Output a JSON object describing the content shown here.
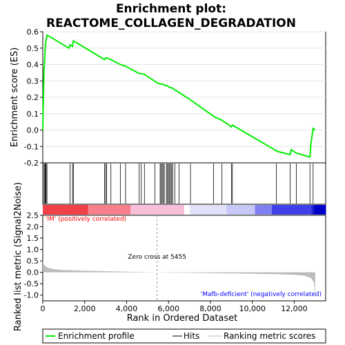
{
  "title_line1": "Enrichment plot:",
  "title_line2": "REACTOME_COLLAGEN_DEGRADATION",
  "colors": {
    "es_line": "#00ee00",
    "hits": "#000000",
    "metric": "#bbbbbb",
    "pos": "#ff0000",
    "neg": "#0000ff"
  },
  "chart_data": [
    {
      "type": "line",
      "name": "enrichment-score",
      "ylabel": "Enrichment score (ES)",
      "xlim": [
        0,
        13500
      ],
      "ylim": [
        -0.2,
        0.6
      ],
      "yticks": [
        "-0.2",
        "-0.1",
        "0.0",
        "0.1",
        "0.2",
        "0.3",
        "0.4",
        "0.5",
        "0.6"
      ],
      "ytick_values": [
        -0.2,
        -0.1,
        0.0,
        0.1,
        0.2,
        0.3,
        0.4,
        0.5,
        0.6
      ],
      "x": [
        0,
        30,
        60,
        100,
        130,
        160,
        200,
        1250,
        1300,
        1420,
        1460,
        2950,
        3000,
        3050,
        3250,
        3700,
        3950,
        4600,
        4700,
        4850,
        5500,
        5650,
        5700,
        5750,
        5800,
        5900,
        5950,
        6000,
        6050,
        6100,
        6200,
        6300,
        6500,
        7100,
        8200,
        8550,
        9000,
        9050,
        11200,
        11800,
        11850,
        12100,
        12750,
        12800,
        12900,
        13000
      ],
      "y": [
        0.0,
        0.2,
        0.36,
        0.45,
        0.52,
        0.55,
        0.58,
        0.5,
        0.52,
        0.51,
        0.545,
        0.43,
        0.44,
        0.44,
        0.43,
        0.4,
        0.39,
        0.345,
        0.345,
        0.34,
        0.285,
        0.28,
        0.28,
        0.28,
        0.275,
        0.27,
        0.27,
        0.265,
        0.26,
        0.26,
        0.255,
        0.245,
        0.23,
        0.18,
        0.08,
        0.06,
        0.02,
        0.03,
        -0.13,
        -0.15,
        -0.12,
        -0.14,
        -0.165,
        -0.08,
        0.01,
        0.0
      ]
    },
    {
      "type": "scatter",
      "name": "hits",
      "label": "Hits",
      "x": [
        60,
        100,
        130,
        160,
        200,
        1300,
        1420,
        1460,
        2950,
        3000,
        3050,
        3250,
        3700,
        3950,
        4600,
        4700,
        4850,
        5350,
        5600,
        5650,
        5700,
        5750,
        5800,
        5900,
        5950,
        6000,
        6050,
        6100,
        6150,
        6200,
        6300,
        6500,
        7050,
        8150,
        8550,
        9000,
        9050,
        11150,
        11800,
        12100,
        12750,
        12900
      ]
    },
    {
      "type": "area",
      "name": "ranked-list-metric",
      "ylabel": "Ranked list metric (Signal2Noise)",
      "xlabel": "Rank in Ordered Dataset",
      "xlim": [
        0,
        13500
      ],
      "ylim": [
        -1.25,
        2.5
      ],
      "xticks": [
        "0",
        "2,000",
        "4,000",
        "6,000",
        "8,000",
        "10,000",
        "12,000"
      ],
      "xtick_values": [
        0,
        2000,
        4000,
        6000,
        8000,
        10000,
        12000
      ],
      "yticks": [
        "-1.0",
        "-0.5",
        "0.0",
        "0.5",
        "1.0",
        "1.5",
        "2.0",
        "2.5"
      ],
      "ytick_values": [
        -1.0,
        -0.5,
        0.0,
        0.5,
        1.0,
        1.5,
        2.0,
        2.5
      ],
      "x": [
        0,
        50,
        150,
        300,
        600,
        1000,
        2000,
        3000,
        4000,
        5000,
        5455,
        6000,
        7000,
        8000,
        9000,
        10000,
        11000,
        12000,
        12500,
        12800,
        12950,
        13000
      ],
      "y": [
        0.55,
        0.35,
        0.25,
        0.18,
        0.13,
        0.1,
        0.07,
        0.05,
        0.03,
        0.01,
        0.0,
        -0.01,
        -0.02,
        -0.03,
        -0.05,
        -0.06,
        -0.08,
        -0.11,
        -0.15,
        -0.25,
        -0.45,
        -1.1
      ]
    }
  ],
  "zero_cross_label": "Zero cross at 5455",
  "zero_cross_x": 5455,
  "pos_label": "'IM' (positively correlated)",
  "neg_label": "'Mafb-deficient' (negatively correlated)",
  "legend": {
    "es": "Enrichment profile",
    "hits": "Hits",
    "metric": "Ranking metric scores"
  }
}
